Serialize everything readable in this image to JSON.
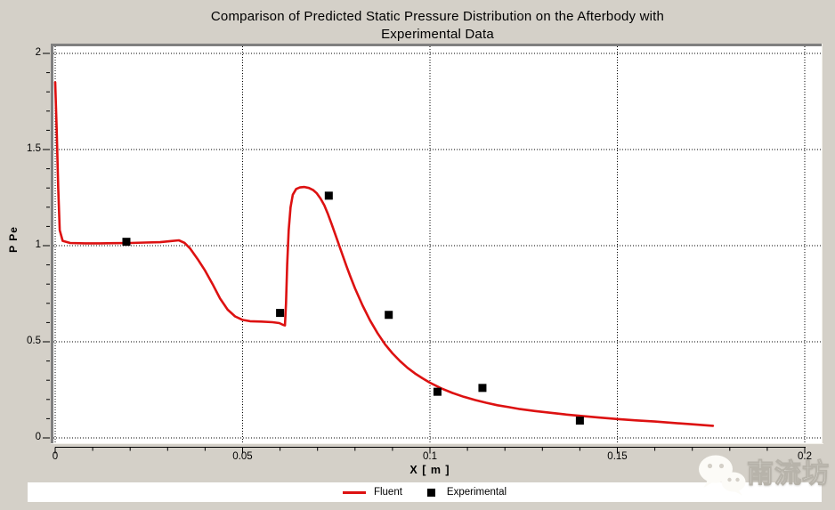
{
  "title": {
    "line1": "Comparison of Predicted Static Pressure Distribution on the Afterbody with",
    "line2": "Experimental Data"
  },
  "watermark": {
    "text": "南流坊",
    "icon": "wechat-logo"
  },
  "colors": {
    "background": "#d4d0c8",
    "plot_background": "#ffffff",
    "fluent_line": "#dd1111",
    "experimental_marker": "#000000",
    "grid": "#000000",
    "axis": "#000000",
    "border": "#7f7f7f"
  },
  "chart_data": {
    "type": "line",
    "title": "Comparison of Predicted Static Pressure Distribution on the Afterbody with Experimental Data",
    "xlabel": "X [ m ]",
    "ylabel": "P Pe",
    "xlim": [
      0,
      0.2
    ],
    "ylim": [
      0,
      2
    ],
    "x_major_ticks": [
      0,
      0.05,
      0.1,
      0.15,
      0.2
    ],
    "x_tick_labels": [
      "0",
      "0.05",
      "0.1",
      "0.15",
      "0.2"
    ],
    "x_minor_step": 0.01,
    "y_major_ticks": [
      0,
      0.5,
      1,
      1.5,
      2
    ],
    "y_tick_labels": [
      "0",
      "0.5",
      "1",
      "1.5",
      "2"
    ],
    "y_minor_step": 0.1,
    "grid": "dotted-at-major-ticks",
    "legend_position": "bottom-strip",
    "series": [
      {
        "name": "Fluent",
        "type": "line",
        "color": "#dd1111",
        "points": [
          [
            0.0,
            1.85
          ],
          [
            0.0004,
            1.6
          ],
          [
            0.0008,
            1.3
          ],
          [
            0.0012,
            1.08
          ],
          [
            0.002,
            1.025
          ],
          [
            0.004,
            1.014
          ],
          [
            0.008,
            1.012
          ],
          [
            0.012,
            1.012
          ],
          [
            0.016,
            1.013
          ],
          [
            0.02,
            1.014
          ],
          [
            0.024,
            1.016
          ],
          [
            0.028,
            1.018
          ],
          [
            0.031,
            1.024
          ],
          [
            0.033,
            1.028
          ],
          [
            0.0345,
            1.015
          ],
          [
            0.036,
            0.985
          ],
          [
            0.038,
            0.93
          ],
          [
            0.04,
            0.87
          ],
          [
            0.042,
            0.8
          ],
          [
            0.044,
            0.725
          ],
          [
            0.046,
            0.667
          ],
          [
            0.048,
            0.632
          ],
          [
            0.05,
            0.614
          ],
          [
            0.052,
            0.607
          ],
          [
            0.055,
            0.605
          ],
          [
            0.058,
            0.602
          ],
          [
            0.0598,
            0.597
          ],
          [
            0.0608,
            0.588
          ],
          [
            0.0613,
            0.585
          ],
          [
            0.0616,
            0.7
          ],
          [
            0.0619,
            0.9
          ],
          [
            0.0623,
            1.08
          ],
          [
            0.0628,
            1.2
          ],
          [
            0.0634,
            1.265
          ],
          [
            0.0643,
            1.295
          ],
          [
            0.0653,
            1.303
          ],
          [
            0.0665,
            1.305
          ],
          [
            0.0677,
            1.3
          ],
          [
            0.0688,
            1.29
          ],
          [
            0.0698,
            1.272
          ],
          [
            0.0708,
            1.245
          ],
          [
            0.0718,
            1.21
          ],
          [
            0.0728,
            1.163
          ],
          [
            0.0738,
            1.11
          ],
          [
            0.0748,
            1.055
          ],
          [
            0.0758,
            1.0
          ],
          [
            0.0768,
            0.945
          ],
          [
            0.0778,
            0.89
          ],
          [
            0.0788,
            0.838
          ],
          [
            0.08,
            0.778
          ],
          [
            0.082,
            0.69
          ],
          [
            0.084,
            0.612
          ],
          [
            0.086,
            0.545
          ],
          [
            0.088,
            0.487
          ],
          [
            0.09,
            0.44
          ],
          [
            0.092,
            0.4
          ],
          [
            0.094,
            0.365
          ],
          [
            0.096,
            0.335
          ],
          [
            0.098,
            0.31
          ],
          [
            0.1,
            0.287
          ],
          [
            0.103,
            0.258
          ],
          [
            0.106,
            0.234
          ],
          [
            0.109,
            0.214
          ],
          [
            0.112,
            0.197
          ],
          [
            0.115,
            0.183
          ],
          [
            0.118,
            0.17
          ],
          [
            0.121,
            0.16
          ],
          [
            0.124,
            0.15
          ],
          [
            0.128,
            0.14
          ],
          [
            0.132,
            0.131
          ],
          [
            0.136,
            0.122
          ],
          [
            0.14,
            0.115
          ],
          [
            0.145,
            0.106
          ],
          [
            0.15,
            0.098
          ],
          [
            0.155,
            0.091
          ],
          [
            0.16,
            0.085
          ],
          [
            0.165,
            0.078
          ],
          [
            0.17,
            0.071
          ],
          [
            0.1755,
            0.063
          ]
        ]
      },
      {
        "name": "Experimental",
        "type": "scatter",
        "marker": "square",
        "color": "#000000",
        "points": [
          [
            0.019,
            1.02
          ],
          [
            0.06,
            0.65
          ],
          [
            0.073,
            1.26
          ],
          [
            0.089,
            0.64
          ],
          [
            0.102,
            0.24
          ],
          [
            0.114,
            0.26
          ],
          [
            0.14,
            0.09
          ]
        ]
      }
    ]
  }
}
